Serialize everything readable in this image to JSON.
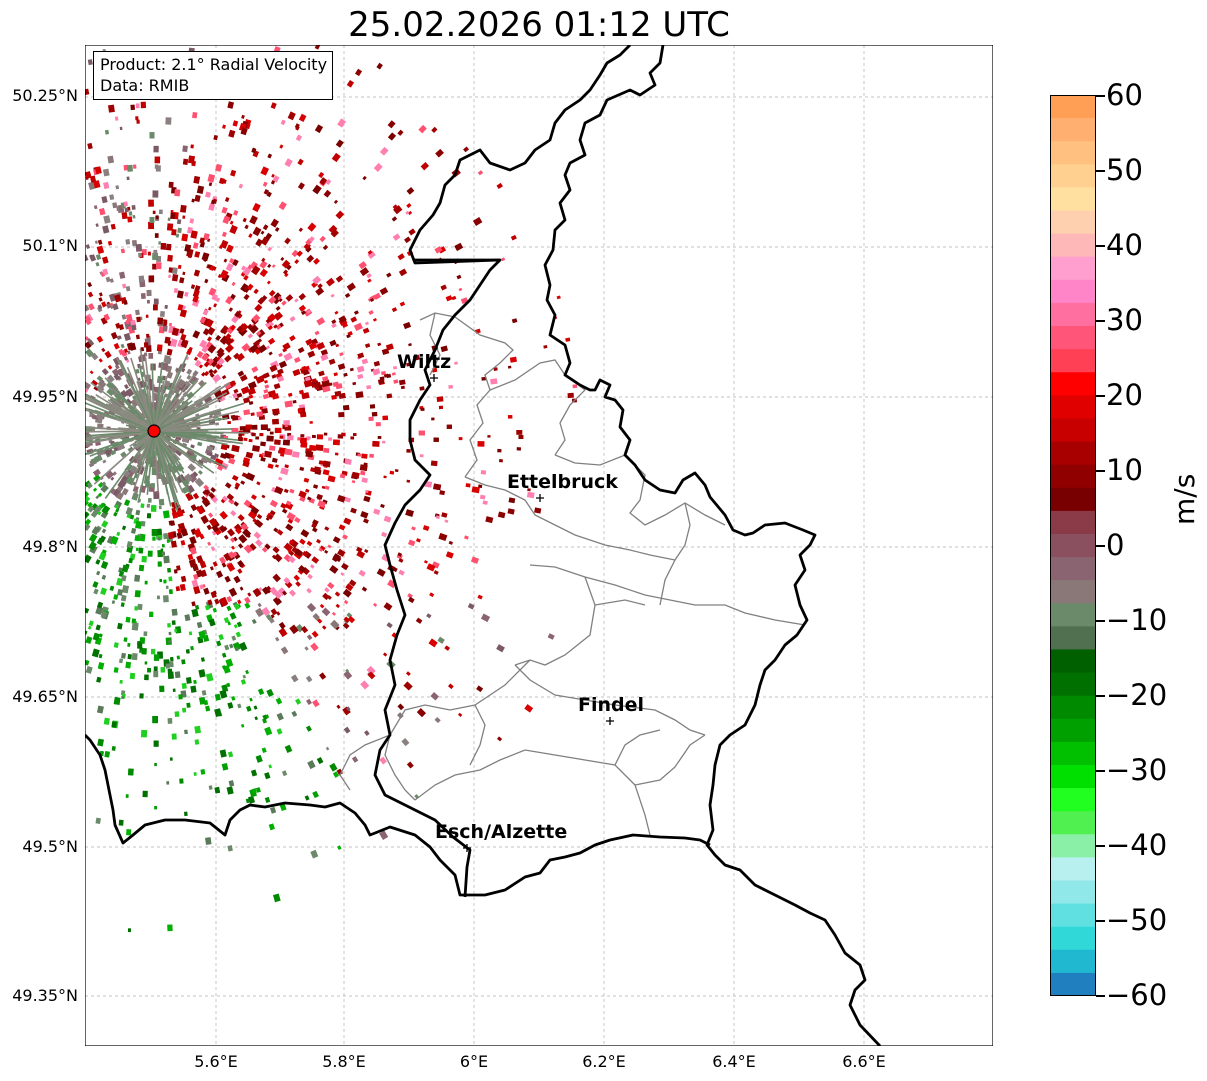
{
  "title": "25.02.2026 01:12 UTC",
  "info": {
    "product": "Product: 2.1° Radial Velocity",
    "data": "Data: RMIB"
  },
  "axes": {
    "lat_labels": [
      "50.25°N",
      "50.1°N",
      "49.95°N",
      "49.8°N",
      "49.65°N",
      "49.5°N",
      "49.35°N"
    ],
    "lon_labels": [
      "5.6°E",
      "5.8°E",
      "6°E",
      "6.2°E",
      "6.4°E",
      "6.6°E"
    ]
  },
  "colorbar": {
    "unit": "m/s",
    "tick_labels": [
      "60",
      "50",
      "40",
      "30",
      "20",
      "10",
      "0",
      "−10",
      "−20",
      "−30",
      "−40",
      "−50",
      "−60"
    ],
    "colors_top_to_bottom": [
      "#ff9f55",
      "#ffb070",
      "#ffc080",
      "#ffd090",
      "#ffe0a0",
      "#ffd0b0",
      "#ffb8b8",
      "#ff9fcf",
      "#ff85c8",
      "#ff70a0",
      "#ff5578",
      "#ff4055",
      "#ff0000",
      "#e00000",
      "#c80000",
      "#a80000",
      "#900000",
      "#780000",
      "#8b3a48",
      "#8a5060",
      "#8a6470",
      "#8a7878",
      "#6a8a6a",
      "#50704f",
      "#006000",
      "#007000",
      "#008a00",
      "#00a000",
      "#00c000",
      "#00e000",
      "#20ff20",
      "#50f050",
      "#8af0a8",
      "#b8f0f0",
      "#90e8e8",
      "#60e0e0",
      "#30d8d8",
      "#20b8d0",
      "#1f7fbf"
    ]
  },
  "cities": {
    "wiltz": "Wiltz",
    "ettelbruck": "Ettelbruck",
    "findel": "Findel",
    "esch": "Esch/Alzette"
  },
  "radar_marker_color": "#ff0000"
}
